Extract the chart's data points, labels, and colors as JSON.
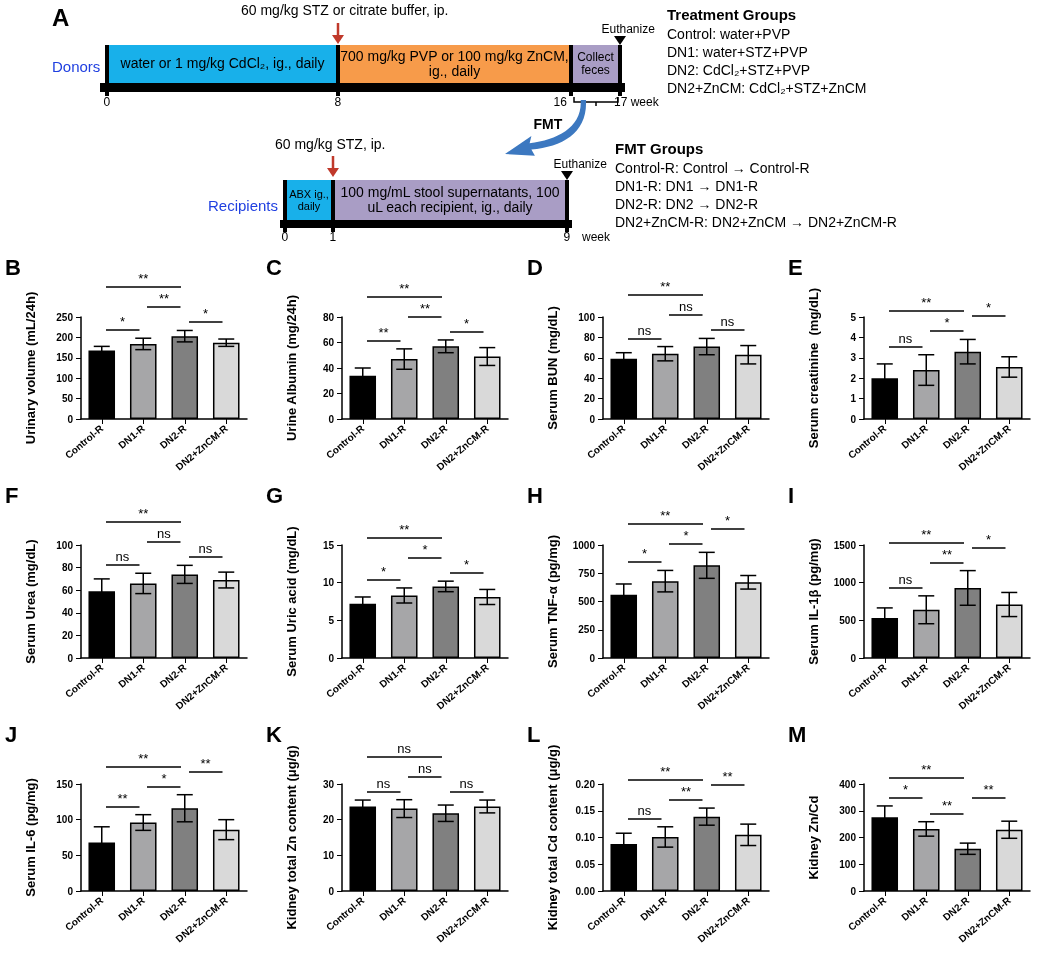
{
  "chart_data": [
    {
      "type": "other",
      "title": "A",
      "annotations": [
        "60 mg/kg STZ or citrate buffer, ip.",
        "Euthanize",
        "Donors",
        "water or 1 mg/kg CdCl₂, ig., daily",
        "700 mg/kg PVP or 100 mg/kg ZnCM, ig., daily",
        "Collect feces",
        "0",
        "8",
        "16",
        "17 week",
        "FMT",
        "Treatment  Groups",
        "Control: water+PVP",
        "DN1: water+STZ+PVP",
        "DN2: CdCl₂+STZ+PVP",
        "DN2+ZnCM: CdCl₂+STZ+ZnCM",
        "60 mg/kg STZ, ip.",
        "Euthanize",
        "Recipients",
        "ABX ig., daily",
        "100 mg/mL stool supernatants, 100 uL each recipient, ig., daily",
        "0",
        "1",
        "9",
        "week",
        "FMT Groups",
        "Control-R: Control → Control-R",
        "DN1-R: DN1 → DN1-R",
        "DN2-R: DN2 → DN2-R",
        "DN2+ZnCM-R: DN2+ZnCM → DN2+ZnCM-R"
      ]
    },
    {
      "type": "bar",
      "title": "B",
      "ylabel": "Urinary volume (mL/24h)",
      "categories": [
        "Control-R",
        "DN1-R",
        "DN2-R",
        "DN2+ZnCM-R"
      ],
      "values": [
        168,
        184,
        203,
        187
      ],
      "errors": [
        10,
        14,
        14,
        9
      ],
      "colors": [
        "#000000",
        "#a6a6a8",
        "#808080",
        "#d9d9d9"
      ],
      "ylim": [
        0,
        250
      ],
      "yticks": [
        0,
        50,
        100,
        150,
        200,
        250
      ],
      "annotations": [
        "**",
        "*",
        "**",
        "*"
      ]
    },
    {
      "type": "bar",
      "title": "C",
      "ylabel": "Urine Albumin (mg/24h)",
      "categories": [
        "Control-R",
        "DN1-R",
        "DN2-R",
        "DN2+ZnCM-R"
      ],
      "values": [
        34,
        47,
        57,
        49
      ],
      "errors": [
        6,
        8,
        5,
        7
      ],
      "colors": [
        "#000000",
        "#a6a6a8",
        "#808080",
        "#d9d9d9"
      ],
      "ylim": [
        0,
        80
      ],
      "yticks": [
        0,
        20,
        40,
        60,
        80
      ],
      "annotations": [
        "**",
        "**",
        "**",
        "*"
      ]
    },
    {
      "type": "bar",
      "title": "D",
      "ylabel": "Serum BUN (mg/dL)",
      "categories": [
        "Control-R",
        "DN1-R",
        "DN2-R",
        "DN2+ZnCM-R"
      ],
      "values": [
        59,
        64,
        71,
        63
      ],
      "errors": [
        6,
        7,
        8,
        9
      ],
      "colors": [
        "#000000",
        "#a6a6a8",
        "#808080",
        "#d9d9d9"
      ],
      "ylim": [
        0,
        100
      ],
      "yticks": [
        0,
        20,
        40,
        60,
        80,
        100
      ],
      "annotations": [
        "**",
        "ns",
        "ns",
        "ns"
      ]
    },
    {
      "type": "bar",
      "title": "E",
      "ylabel": "Serum creatinine  (mg/dL)",
      "categories": [
        "Control-R",
        "DN1-R",
        "DN2-R",
        "DN2+ZnCM-R"
      ],
      "values": [
        2.0,
        2.4,
        3.3,
        2.55
      ],
      "errors": [
        0.7,
        0.75,
        0.6,
        0.5
      ],
      "colors": [
        "#000000",
        "#a6a6a8",
        "#808080",
        "#d9d9d9"
      ],
      "ylim": [
        0,
        5
      ],
      "yticks": [
        0,
        1,
        2,
        3,
        4,
        5
      ],
      "annotations": [
        "**",
        "ns",
        "*",
        "*"
      ]
    },
    {
      "type": "bar",
      "title": "F",
      "ylabel": "Serum Urea (mg/dL)",
      "categories": [
        "Control-R",
        "DN1-R",
        "DN2-R",
        "DN2+ZnCM-R"
      ],
      "values": [
        59,
        66,
        74,
        69
      ],
      "errors": [
        11,
        9,
        8,
        7
      ],
      "colors": [
        "#000000",
        "#a6a6a8",
        "#808080",
        "#d9d9d9"
      ],
      "ylim": [
        0,
        100
      ],
      "yticks": [
        0,
        20,
        40,
        60,
        80,
        100
      ],
      "annotations": [
        "**",
        "ns",
        "ns",
        "ns"
      ]
    },
    {
      "type": "bar",
      "title": "G",
      "ylabel": "Serum Uric acid (mg/dL)",
      "categories": [
        "Control-R",
        "DN1-R",
        "DN2-R",
        "DN2+ZnCM-R"
      ],
      "values": [
        7.2,
        8.3,
        9.5,
        8.1
      ],
      "errors": [
        0.9,
        1.0,
        0.7,
        1.0
      ],
      "colors": [
        "#000000",
        "#a6a6a8",
        "#808080",
        "#d9d9d9"
      ],
      "ylim": [
        0,
        15
      ],
      "yticks": [
        0,
        5,
        10,
        15
      ],
      "annotations": [
        "**",
        "*",
        "*",
        "*"
      ]
    },
    {
      "type": "bar",
      "title": "H",
      "ylabel": "Serum TNF-α (pg/mg)",
      "categories": [
        "Control-R",
        "DN1-R",
        "DN2-R",
        "DN2+ZnCM-R"
      ],
      "values": [
        560,
        680,
        820,
        670
      ],
      "errors": [
        95,
        95,
        115,
        60
      ],
      "colors": [
        "#000000",
        "#a6a6a8",
        "#808080",
        "#d9d9d9"
      ],
      "ylim": [
        0,
        1000
      ],
      "yticks": [
        0,
        250,
        500,
        750,
        1000
      ],
      "annotations": [
        "**",
        "*",
        "*",
        "*"
      ]
    },
    {
      "type": "bar",
      "title": "I",
      "ylabel": "Serum IL-1β (pg/mg)",
      "categories": [
        "Control-R",
        "DN1-R",
        "DN2-R",
        "DN2+ZnCM-R"
      ],
      "values": [
        530,
        640,
        930,
        710
      ],
      "errors": [
        135,
        185,
        230,
        160
      ],
      "colors": [
        "#000000",
        "#a6a6a8",
        "#808080",
        "#d9d9d9"
      ],
      "ylim": [
        0,
        1500
      ],
      "yticks": [
        0,
        500,
        1000,
        1500
      ],
      "annotations": [
        "**",
        "ns",
        "**",
        "*"
      ]
    },
    {
      "type": "bar",
      "title": "J",
      "ylabel": "Serum IL-6 (pg/mg)",
      "categories": [
        "Control-R",
        "DN1-R",
        "DN2-R",
        "DN2+ZnCM-R"
      ],
      "values": [
        68,
        96,
        116,
        86
      ],
      "errors": [
        22,
        11,
        19,
        14
      ],
      "colors": [
        "#000000",
        "#a6a6a8",
        "#808080",
        "#d9d9d9"
      ],
      "ylim": [
        0,
        150
      ],
      "yticks": [
        0,
        50,
        100,
        150
      ],
      "annotations": [
        "**",
        "**",
        "*",
        "**"
      ]
    },
    {
      "type": "bar",
      "title": "K",
      "ylabel": "Kidney total Zn content (μg/g)",
      "categories": [
        "Control-R",
        "DN1-R",
        "DN2-R",
        "DN2+ZnCM-R"
      ],
      "values": [
        23.7,
        23.1,
        21.8,
        23.7
      ],
      "errors": [
        1.8,
        2.5,
        2.3,
        1.8
      ],
      "colors": [
        "#000000",
        "#a6a6a8",
        "#808080",
        "#d9d9d9"
      ],
      "ylim": [
        0,
        30
      ],
      "yticks": [
        0,
        10,
        20,
        30
      ],
      "annotations": [
        "ns",
        "ns",
        "ns",
        "ns"
      ]
    },
    {
      "type": "bar",
      "title": "L",
      "ylabel": "Kidney total Cd content (μg/g)",
      "categories": [
        "Control-R",
        "DN1-R",
        "DN2-R",
        "DN2+ZnCM-R"
      ],
      "values": [
        0.088,
        0.101,
        0.139,
        0.105
      ],
      "errors": [
        0.02,
        0.019,
        0.016,
        0.02
      ],
      "colors": [
        "#000000",
        "#a6a6a8",
        "#808080",
        "#d9d9d9"
      ],
      "ylim": [
        0,
        0.2
      ],
      "yticks": [
        {
          "value": 0,
          "label": "0.00"
        },
        {
          "value": 0.05,
          "label": "0.05"
        },
        {
          "value": 0.1,
          "label": "0.10"
        },
        {
          "value": 0.15,
          "label": "0.15"
        },
        {
          "value": 0.2,
          "label": "0.20"
        }
      ],
      "annotations": [
        "**",
        "ns",
        "**",
        "**"
      ]
    },
    {
      "type": "bar",
      "title": "M",
      "ylabel": "Kidney Zn/Cd",
      "categories": [
        "Control-R",
        "DN1-R",
        "DN2-R",
        "DN2+ZnCM-R"
      ],
      "values": [
        276,
        232,
        158,
        229
      ],
      "errors": [
        42,
        27,
        21,
        32
      ],
      "colors": [
        "#000000",
        "#a6a6a8",
        "#808080",
        "#d9d9d9"
      ],
      "ylim": [
        0,
        400
      ],
      "yticks": [
        0,
        100,
        200,
        300,
        400
      ],
      "annotations": [
        "**",
        "*",
        "**",
        "**"
      ]
    }
  ]
}
